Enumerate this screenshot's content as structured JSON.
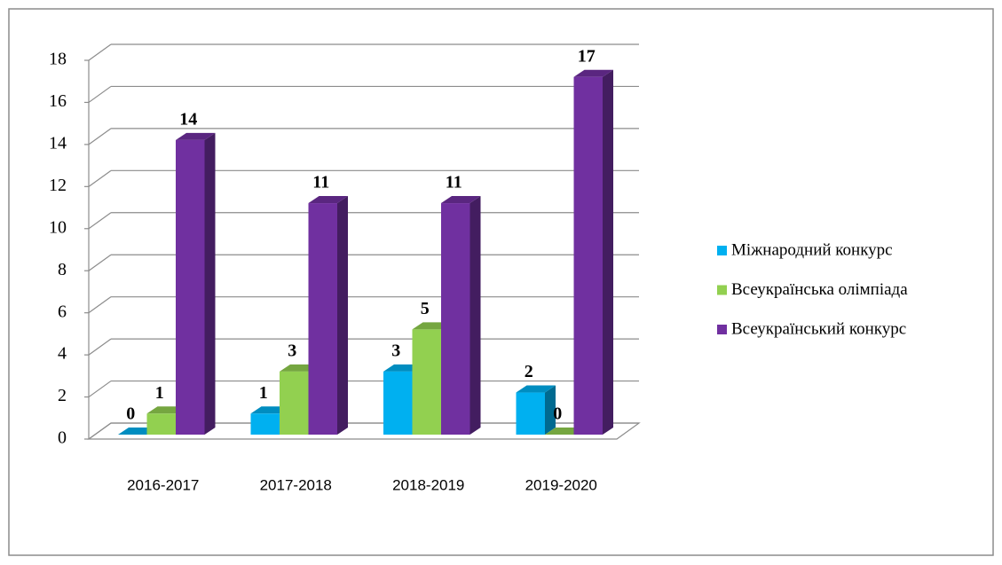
{
  "chart_data": {
    "type": "bar3d",
    "categories": [
      "2016-2017",
      "2017-2018",
      "2018-2019",
      "2019-2020"
    ],
    "series": [
      {
        "name": "Міжнародний конкурс",
        "color": "#00b0f0",
        "values": [
          0,
          1,
          3,
          2
        ]
      },
      {
        "name": "Всеукраїнська олімпіада",
        "color": "#92d050",
        "values": [
          1,
          3,
          5,
          0
        ]
      },
      {
        "name": "Всеукраїнський конкурс",
        "color": "#7030a0",
        "values": [
          14,
          11,
          11,
          17
        ]
      }
    ],
    "ylim": [
      0,
      18
    ],
    "yticks": [
      0,
      2,
      4,
      6,
      8,
      10,
      12,
      14,
      16,
      18
    ],
    "grid": true,
    "legend": "right"
  }
}
